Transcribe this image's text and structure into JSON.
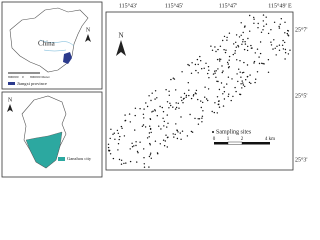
{
  "map": {
    "lon_labels": [
      "115°43'",
      "115°45'",
      "115°47'",
      "115°49' E"
    ],
    "lat_labels": [
      "25°7'",
      "25°5'",
      "25°3'"
    ],
    "north": "N",
    "country": "China",
    "province_legend": "Jiangxi province",
    "city_legend": "Ganzhou city",
    "sites_legend": "Sampling sites",
    "scale_labels": [
      "0",
      "1",
      "2",
      "4 km"
    ],
    "inset_scale_labels": [
      "800000",
      "0",
      "800000 Meter"
    ]
  }
}
